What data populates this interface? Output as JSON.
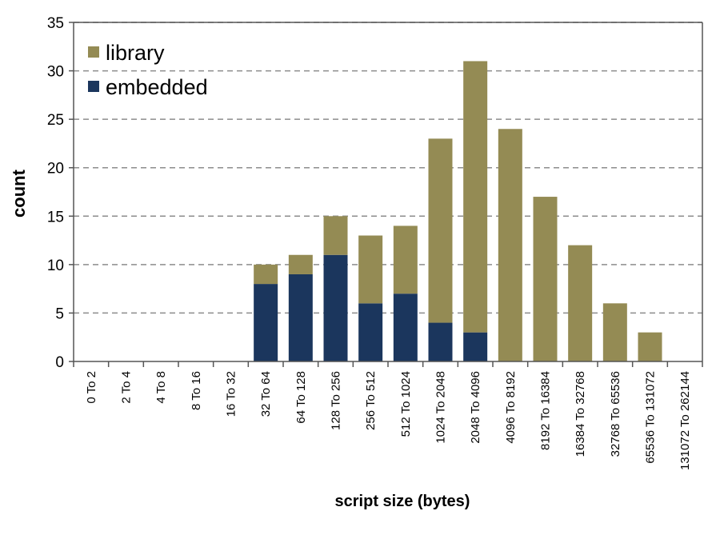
{
  "chart_data": {
    "type": "bar",
    "stacked": true,
    "title": "",
    "xlabel": "script size (bytes)",
    "ylabel": "count",
    "ylim": [
      0,
      35
    ],
    "yticks": [
      0,
      5,
      10,
      15,
      20,
      25,
      30,
      35
    ],
    "grid": "horizontal dashed",
    "legend_position": "top-left",
    "categories": [
      "0 To 2",
      "2 To 4",
      "4 To 8",
      "8 To 16",
      "16 To 32",
      "32 To 64",
      "64 To 128",
      "128 To 256",
      "256 To 512",
      "512 To 1024",
      "1024 To 2048",
      "2048 To 4096",
      "4096 To 8192",
      "8192 To 16384",
      "16384 To 32768",
      "32768 To 65536",
      "65536 To 131072",
      "131072 To 262144"
    ],
    "series": [
      {
        "name": "embedded",
        "color": "#1b365d",
        "values": [
          0,
          0,
          0,
          0,
          0,
          8,
          9,
          11,
          6,
          7,
          4,
          3,
          0,
          0,
          0,
          0,
          0,
          0
        ]
      },
      {
        "name": "library",
        "color": "#948b54",
        "values": [
          0,
          0,
          0,
          0,
          0,
          2,
          2,
          4,
          7,
          7,
          19,
          28,
          24,
          17,
          12,
          6,
          3,
          0
        ]
      }
    ],
    "legend_order": [
      "library",
      "embedded"
    ]
  }
}
